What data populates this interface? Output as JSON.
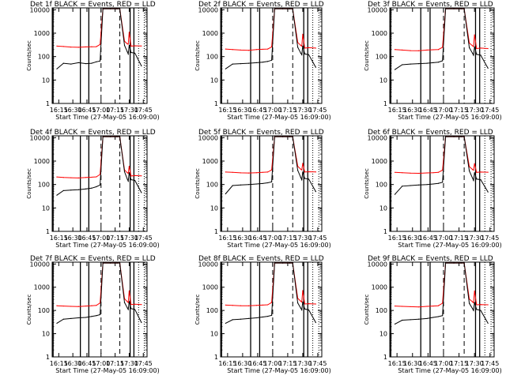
{
  "chart_data": {
    "type": "line",
    "layout": "3x3 grid of panels",
    "yscale": "log",
    "ylim": [
      1,
      12000
    ],
    "xlim_minutes": [
      "16:08",
      "17:49"
    ],
    "yticks": [
      "1",
      "10",
      "100",
      "1000",
      "10000"
    ],
    "xticks": [
      "16:15",
      "16:30",
      "16:45",
      "17:00",
      "17:15",
      "17:30",
      "17:45"
    ],
    "ylabel": "Counts/sec",
    "xlabel": "Start Time (27-May-05 16:09:00)",
    "series_styles": {
      "events": {
        "color": "#000000"
      },
      "lld": {
        "color": "#ff0000"
      }
    },
    "x": [
      "16:13",
      "16:20",
      "16:28",
      "16:36",
      "16:44",
      "16:50",
      "16:55",
      "16:59",
      "17:02",
      "17:10",
      "17:17",
      "17:20",
      "17:25",
      "17:28",
      "17:29",
      "17:30",
      "17:32",
      "17:36",
      "17:43"
    ],
    "vlines": {
      "solid": [
        "16:09",
        "16:38",
        "16:47",
        "17:31",
        "17:35"
      ],
      "dashed": [
        "17:00",
        "17:20"
      ],
      "dotted": [
        "17:40",
        "17:46"
      ]
    },
    "panels": [
      {
        "title": "Det 1f BLACK = Events, RED = LLD",
        "events": [
          30,
          52,
          48,
          55,
          50,
          52,
          60,
          65,
          11000,
          11000,
          11000,
          11000,
          300,
          160,
          130,
          300,
          150,
          140,
          40
        ],
        "lld": [
          280,
          270,
          255,
          250,
          260,
          262,
          265,
          330,
          11000,
          11000,
          11000,
          11000,
          450,
          350,
          340,
          1100,
          280,
          290,
          285
        ]
      },
      {
        "title": "Det 2f BLACK = Events, RED = LLD",
        "events": [
          30,
          48,
          50,
          52,
          55,
          58,
          62,
          70,
          11000,
          11000,
          11000,
          11000,
          250,
          140,
          120,
          280,
          130,
          120,
          35
        ],
        "lld": [
          210,
          200,
          190,
          185,
          200,
          205,
          210,
          260,
          11000,
          11000,
          11000,
          11000,
          400,
          300,
          280,
          900,
          230,
          240,
          230
        ]
      },
      {
        "title": "Det 3f BLACK = Events, RED = LLD",
        "events": [
          28,
          45,
          48,
          50,
          52,
          55,
          58,
          66,
          11000,
          11000,
          11000,
          11000,
          240,
          140,
          115,
          260,
          125,
          115,
          32
        ],
        "lld": [
          200,
          190,
          180,
          178,
          190,
          196,
          200,
          250,
          11000,
          11000,
          11000,
          11000,
          380,
          290,
          270,
          850,
          220,
          230,
          220
        ]
      },
      {
        "title": "Det 4f BLACK = Events, RED = LLD",
        "events": [
          35,
          55,
          58,
          60,
          65,
          70,
          80,
          95,
          11000,
          11000,
          11000,
          11000,
          350,
          170,
          140,
          320,
          160,
          150,
          45
        ],
        "lld": [
          210,
          200,
          195,
          190,
          200,
          205,
          212,
          270,
          11000,
          11000,
          11000,
          11000,
          420,
          320,
          300,
          600,
          230,
          240,
          235
        ]
      },
      {
        "title": "Det 5f BLACK = Events, RED = LLD",
        "events": [
          40,
          90,
          95,
          100,
          105,
          110,
          118,
          130,
          11000,
          11000,
          11000,
          11000,
          400,
          200,
          160,
          340,
          180,
          170,
          50
        ],
        "lld": [
          340,
          330,
          315,
          310,
          320,
          330,
          340,
          420,
          11000,
          11000,
          11000,
          11000,
          600,
          450,
          420,
          800,
          340,
          350,
          345
        ]
      },
      {
        "title": "Det 6f BLACK = Events, RED = LLD",
        "events": [
          38,
          85,
          90,
          95,
          100,
          105,
          112,
          125,
          11000,
          11000,
          11000,
          11000,
          380,
          190,
          150,
          320,
          170,
          160,
          48
        ],
        "lld": [
          330,
          320,
          305,
          300,
          312,
          320,
          330,
          410,
          11000,
          11000,
          11000,
          11000,
          580,
          440,
          410,
          780,
          330,
          340,
          335
        ]
      },
      {
        "title": "Det 7f BLACK = Events, RED = LLD",
        "events": [
          28,
          42,
          45,
          48,
          50,
          55,
          60,
          66,
          11000,
          11000,
          11000,
          11000,
          220,
          130,
          110,
          240,
          120,
          110,
          30
        ],
        "lld": [
          160,
          155,
          150,
          148,
          155,
          160,
          165,
          210,
          11000,
          11000,
          11000,
          11000,
          320,
          240,
          220,
          700,
          180,
          185,
          180
        ]
      },
      {
        "title": "Det 8f BLACK = Events, RED = LLD",
        "events": [
          28,
          40,
          42,
          45,
          48,
          52,
          56,
          62,
          11000,
          11000,
          11000,
          11000,
          210,
          125,
          105,
          230,
          115,
          105,
          30
        ],
        "lld": [
          170,
          165,
          160,
          158,
          165,
          170,
          175,
          220,
          11000,
          11000,
          11000,
          11000,
          330,
          250,
          230,
          720,
          190,
          195,
          190
        ]
      },
      {
        "title": "Det 9f BLACK = Events, RED = LLD",
        "events": [
          26,
          38,
          40,
          42,
          45,
          50,
          54,
          60,
          11000,
          11000,
          11000,
          11000,
          200,
          120,
          100,
          220,
          110,
          100,
          28
        ],
        "lld": [
          155,
          150,
          145,
          142,
          150,
          155,
          160,
          205,
          11000,
          11000,
          11000,
          11000,
          310,
          235,
          215,
          690,
          175,
          180,
          175
        ]
      }
    ]
  }
}
